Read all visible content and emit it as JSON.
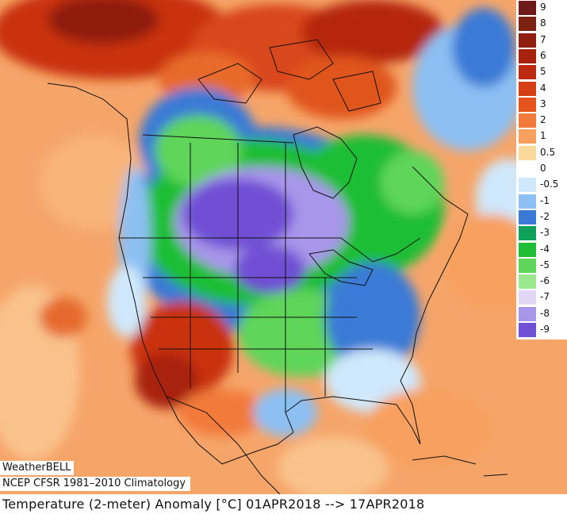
{
  "map": {
    "brand": "WeatherBELL",
    "climatology": "NCEP CFSR 1981–2010 Climatology",
    "title": "Temperature (2-meter) Anomaly   [°C] 01APR2018 --> 17APR2018"
  },
  "legend": {
    "entries": [
      {
        "label": "9",
        "color": "#6e1a1a"
      },
      {
        "label": "8",
        "color": "#7d2113"
      },
      {
        "label": "7",
        "color": "#8f1f10"
      },
      {
        "label": "6",
        "color": "#a8200e"
      },
      {
        "label": "5",
        "color": "#bd2a0f"
      },
      {
        "label": "4",
        "color": "#d43f14"
      },
      {
        "label": "3",
        "color": "#e5541c"
      },
      {
        "label": "2",
        "color": "#f27a3a"
      },
      {
        "label": "1",
        "color": "#f7a05e"
      },
      {
        "label": "0.5",
        "color": "#fbd99a"
      },
      {
        "label": "0",
        "color": "#ffffff"
      },
      {
        "label": "-0.5",
        "color": "#cfe8fb"
      },
      {
        "label": "-1",
        "color": "#8cc0f3"
      },
      {
        "label": "-2",
        "color": "#3a7ad6"
      },
      {
        "label": "-3",
        "color": "#0fa05a"
      },
      {
        "label": "-4",
        "color": "#1fbe35"
      },
      {
        "label": "-5",
        "color": "#5fd55a"
      },
      {
        "label": "-6",
        "color": "#9be88e"
      },
      {
        "label": "-7",
        "color": "#e2d7f5"
      },
      {
        "label": "-8",
        "color": "#a896ea"
      },
      {
        "label": "-9",
        "color": "#7050d4"
      }
    ]
  }
}
